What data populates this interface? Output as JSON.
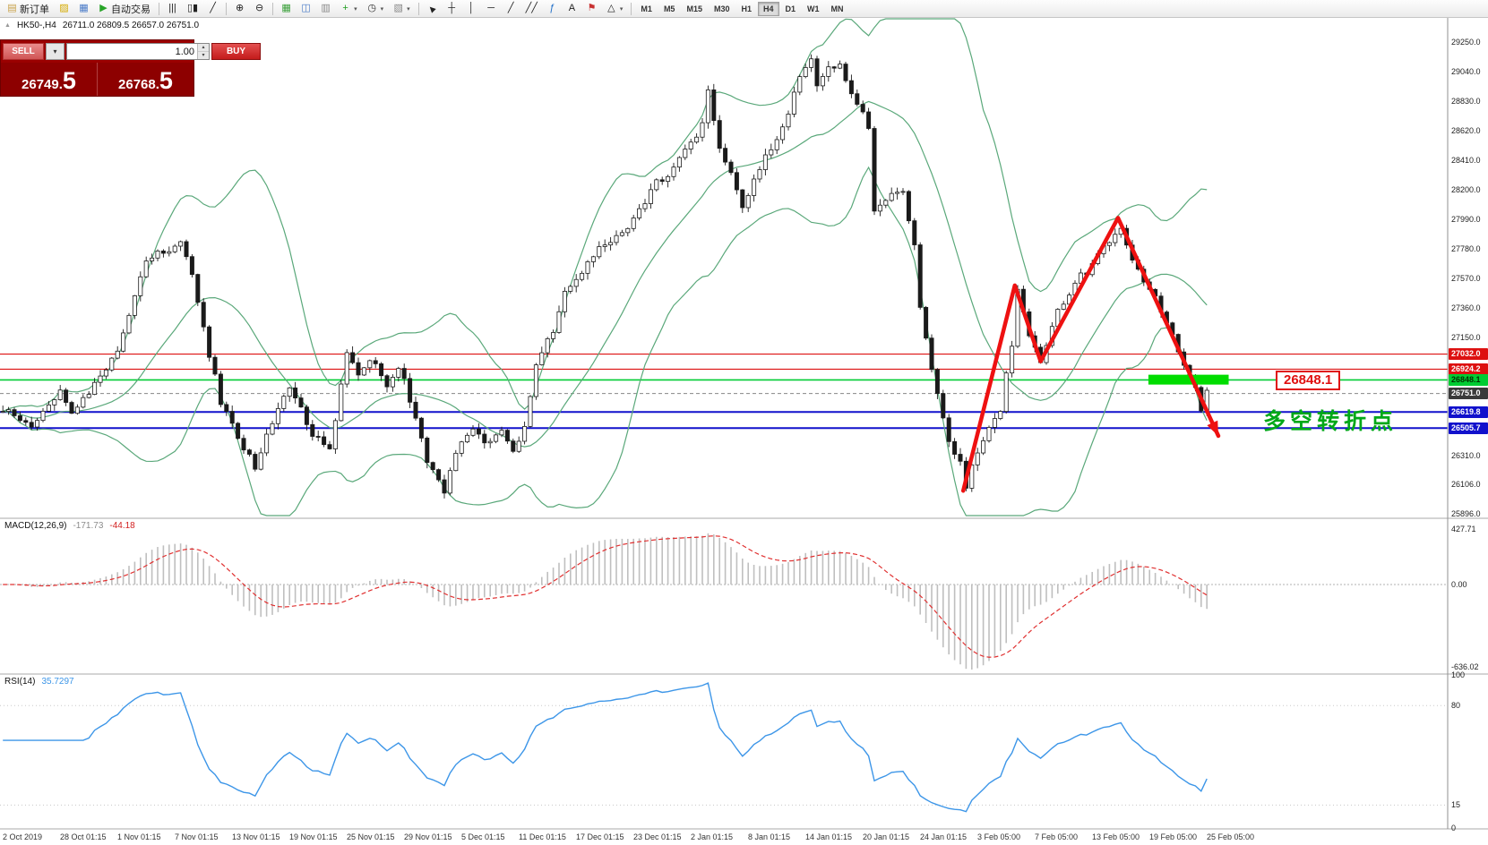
{
  "glyphs": {
    "collapse": "▲",
    "dropdown": "▾",
    "step_up": "▴",
    "step_down": "▾"
  },
  "toolbar": {
    "items": [
      {
        "id": "new-order-button",
        "glyph": "▤",
        "glyph_color": "#c8a24a",
        "label": "新订单"
      },
      {
        "id": "chart-profile-button",
        "glyph": "▨",
        "glyph_color": "#d4aa00"
      },
      {
        "id": "data-window-button",
        "glyph": "▦",
        "glyph_color": "#4a7bc8"
      },
      {
        "id": "autotrading-button",
        "glyph": "▶",
        "glyph_color": "#28a428",
        "label": "自动交易"
      },
      {
        "sep": true
      },
      {
        "id": "ohlc-bars-button",
        "glyph": "|||"
      },
      {
        "id": "candlestick-chart-button",
        "glyph": "▯▮"
      },
      {
        "id": "line-chart-button",
        "glyph": "╱"
      },
      {
        "sep": true
      },
      {
        "id": "zoom-in-button",
        "glyph": "⊕"
      },
      {
        "id": "zoom-out-button",
        "glyph": "⊖"
      },
      {
        "sep": true
      },
      {
        "id": "tile-windows-button",
        "glyph": "▦",
        "glyph_color": "#3aa03a"
      },
      {
        "id": "cascade-windows-button",
        "glyph": "◫",
        "glyph_color": "#4a7bc8"
      },
      {
        "id": "arrange-windows-button",
        "glyph": "▥",
        "glyph_color": "#888888"
      },
      {
        "id": "add-indicator-button",
        "glyph": "+",
        "glyph_color": "#1f9e1f",
        "dropdown": true
      },
      {
        "id": "periods-button",
        "glyph": "◷",
        "glyph_color": "#333333",
        "dropdown": true
      },
      {
        "id": "templates-button",
        "glyph": "▧",
        "glyph_color": "#888888",
        "dropdown": true
      },
      {
        "sep": true
      },
      {
        "id": "cursor-button",
        "glyph": "►",
        "rotate": -135
      },
      {
        "id": "crosshair-button",
        "glyph": "┼"
      },
      {
        "id": "vertical-line-button",
        "glyph": "│"
      },
      {
        "id": "horizontal-line-button",
        "glyph": "─"
      },
      {
        "id": "trendline-button",
        "glyph": "╱"
      },
      {
        "id": "channel-button",
        "glyph": "╱╱"
      },
      {
        "id": "fibonacci-button",
        "glyph": "ƒ",
        "glyph_color": "#1f6ec8"
      },
      {
        "id": "text-button",
        "glyph": "A"
      },
      {
        "id": "arrows-button",
        "glyph": "⚑",
        "glyph_color": "#c83232"
      },
      {
        "id": "shapes-button",
        "glyph": "△",
        "dropdown": true
      },
      {
        "sep": true
      }
    ],
    "timeframes": [
      "M1",
      "M5",
      "M15",
      "M30",
      "H1",
      "H4",
      "D1",
      "W1",
      "MN"
    ],
    "active_timeframe": "H4"
  },
  "chart": {
    "symbol_period": "HK50-,H4",
    "ohlc": "26711.0 26809.5 26657.0 26751.0"
  },
  "order_panel": {
    "sell_label": "SELL",
    "buy_label": "BUY",
    "volume": "1.00",
    "sell_price_main": "26749.",
    "sell_price_big": "5",
    "buy_price_main": "26768.",
    "buy_price_big": "5"
  },
  "annotations": {
    "price_label": "26848.1",
    "turning_point_label": "多空转折点"
  },
  "macd": {
    "title": "MACD(12,26,9)",
    "value_main": "-171.73",
    "value_signal": "-44.18",
    "axis_labels": [
      "427.71",
      "0.00",
      "-636.02"
    ]
  },
  "rsi": {
    "title": "RSI(14)",
    "value": "35.7297",
    "axis_labels": [
      "100",
      "80",
      "15",
      "0"
    ]
  },
  "price_axis": {
    "labels": [
      "29250.0",
      "29040.0",
      "28830.0",
      "28620.0",
      "28410.0",
      "28200.0",
      "27990.0",
      "27780.0",
      "27570.0",
      "27360.0",
      "27150.0",
      "26310.0",
      "26106.0",
      "25896.0"
    ],
    "tags": [
      {
        "label": "27032.0",
        "price": 27032.0,
        "bg": "#dd1111",
        "fg": "#ffffff"
      },
      {
        "label": "26924.2",
        "price": 26924.2,
        "bg": "#dd1111",
        "fg": "#ffffff"
      },
      {
        "label": "26848.1",
        "price": 26848.1,
        "bg": "#00cc33",
        "fg": "#003300"
      },
      {
        "label": "26751.0",
        "price": 26751.0,
        "bg": "#3a3a3a",
        "fg": "#ffffff"
      },
      {
        "label": "26619.8",
        "price": 26619.8,
        "bg": "#1111cc",
        "fg": "#ffffff"
      },
      {
        "label": "26505.7",
        "price": 26505.7,
        "bg": "#1111cc",
        "fg": "#ffffff"
      }
    ]
  },
  "time_axis": [
    "2 Oct 2019",
    "28 Oct 01:15",
    "1 Nov 01:15",
    "7 Nov 01:15",
    "13 Nov 01:15",
    "19 Nov 01:15",
    "25 Nov 01:15",
    "29 Nov 01:15",
    "5 Dec 01:15",
    "11 Dec 01:15",
    "17 Dec 01:15",
    "23 Dec 01:15",
    "2 Jan 01:15",
    "8 Jan 01:15",
    "14 Jan 01:15",
    "20 Jan 01:15",
    "24 Jan 01:15",
    "3 Feb 05:00",
    "7 Feb 05:00",
    "13 Feb 05:00",
    "19 Feb 05:00",
    "25 Feb 05:00"
  ],
  "chart_data": {
    "type": "candlestick",
    "symbol": "HK50-",
    "timeframe": "H4",
    "price_range_visible": [
      25896,
      29250
    ],
    "candles_count": 211,
    "price_path_anchors": [
      [
        0,
        26640
      ],
      [
        5,
        26520
      ],
      [
        10,
        26780
      ],
      [
        12,
        26620
      ],
      [
        17,
        26850
      ],
      [
        20,
        27050
      ],
      [
        25,
        27700
      ],
      [
        28,
        27760
      ],
      [
        31,
        27840
      ],
      [
        33,
        27600
      ],
      [
        35,
        27200
      ],
      [
        38,
        26700
      ],
      [
        42,
        26350
      ],
      [
        44,
        26240
      ],
      [
        47,
        26550
      ],
      [
        50,
        26800
      ],
      [
        52,
        26650
      ],
      [
        54,
        26450
      ],
      [
        57,
        26350
      ],
      [
        60,
        27050
      ],
      [
        62,
        26900
      ],
      [
        64,
        27000
      ],
      [
        67,
        26820
      ],
      [
        69,
        26950
      ],
      [
        72,
        26600
      ],
      [
        74,
        26250
      ],
      [
        77,
        26060
      ],
      [
        79,
        26350
      ],
      [
        82,
        26500
      ],
      [
        84,
        26400
      ],
      [
        87,
        26500
      ],
      [
        89,
        26350
      ],
      [
        91,
        26500
      ],
      [
        93,
        26950
      ],
      [
        96,
        27200
      ],
      [
        98,
        27500
      ],
      [
        101,
        27600
      ],
      [
        103,
        27750
      ],
      [
        107,
        27850
      ],
      [
        109,
        27950
      ],
      [
        112,
        28100
      ],
      [
        114,
        28250
      ],
      [
        117,
        28350
      ],
      [
        119,
        28500
      ],
      [
        122,
        28650
      ],
      [
        123,
        28900
      ],
      [
        125,
        28500
      ],
      [
        127,
        28300
      ],
      [
        129,
        28100
      ],
      [
        132,
        28350
      ],
      [
        134,
        28500
      ],
      [
        137,
        28750
      ],
      [
        139,
        29000
      ],
      [
        141,
        29150
      ],
      [
        142,
        28950
      ],
      [
        144,
        29050
      ],
      [
        146,
        29100
      ],
      [
        148,
        28900
      ],
      [
        151,
        28650
      ],
      [
        152,
        28050
      ],
      [
        155,
        28150
      ],
      [
        157,
        28200
      ],
      [
        159,
        27800
      ],
      [
        160,
        27350
      ],
      [
        162,
        26900
      ],
      [
        165,
        26400
      ],
      [
        167,
        26250
      ],
      [
        168,
        26100
      ],
      [
        170,
        26350
      ],
      [
        172,
        26500
      ],
      [
        174,
        26650
      ],
      [
        176,
        27100
      ],
      [
        177,
        27480
      ],
      [
        179,
        27150
      ],
      [
        181,
        26980
      ],
      [
        183,
        27250
      ],
      [
        185,
        27400
      ],
      [
        187,
        27550
      ],
      [
        190,
        27650
      ],
      [
        192,
        27800
      ],
      [
        195,
        27950
      ],
      [
        197,
        27700
      ],
      [
        200,
        27500
      ],
      [
        202,
        27350
      ],
      [
        204,
        27150
      ],
      [
        206,
        26950
      ],
      [
        208,
        26780
      ],
      [
        209,
        26650
      ],
      [
        210,
        26751
      ]
    ],
    "overlays": {
      "bollinger_period": 20,
      "bollinger_deviation": 2
    },
    "hlines": [
      {
        "price": 27032.0,
        "color": "#dd1111",
        "style": "solid",
        "width": 1.1
      },
      {
        "price": 26924.2,
        "color": "#dd1111",
        "style": "solid",
        "width": 1.1
      },
      {
        "price": 26848.1,
        "color": "#00cc33",
        "style": "solid",
        "width": 1.6
      },
      {
        "price": 26751.0,
        "color": "#888888",
        "style": "dashed",
        "width": 1
      },
      {
        "price": 26619.8,
        "color": "#1111cc",
        "style": "solid",
        "width": 2
      },
      {
        "price": 26505.7,
        "color": "#1111cc",
        "style": "solid",
        "width": 2
      }
    ],
    "zone": {
      "idx_start": 199.8,
      "idx_end": 213.8,
      "price_top": 26885,
      "price_bottom": 26815,
      "color": "#00dd00"
    },
    "arrow": {
      "color": "#ee1111",
      "points_idx_price": [
        [
          167.5,
          26060
        ],
        [
          176.5,
          27520
        ],
        [
          181,
          26980
        ],
        [
          194.5,
          28000
        ],
        [
          212,
          26450
        ]
      ]
    }
  }
}
